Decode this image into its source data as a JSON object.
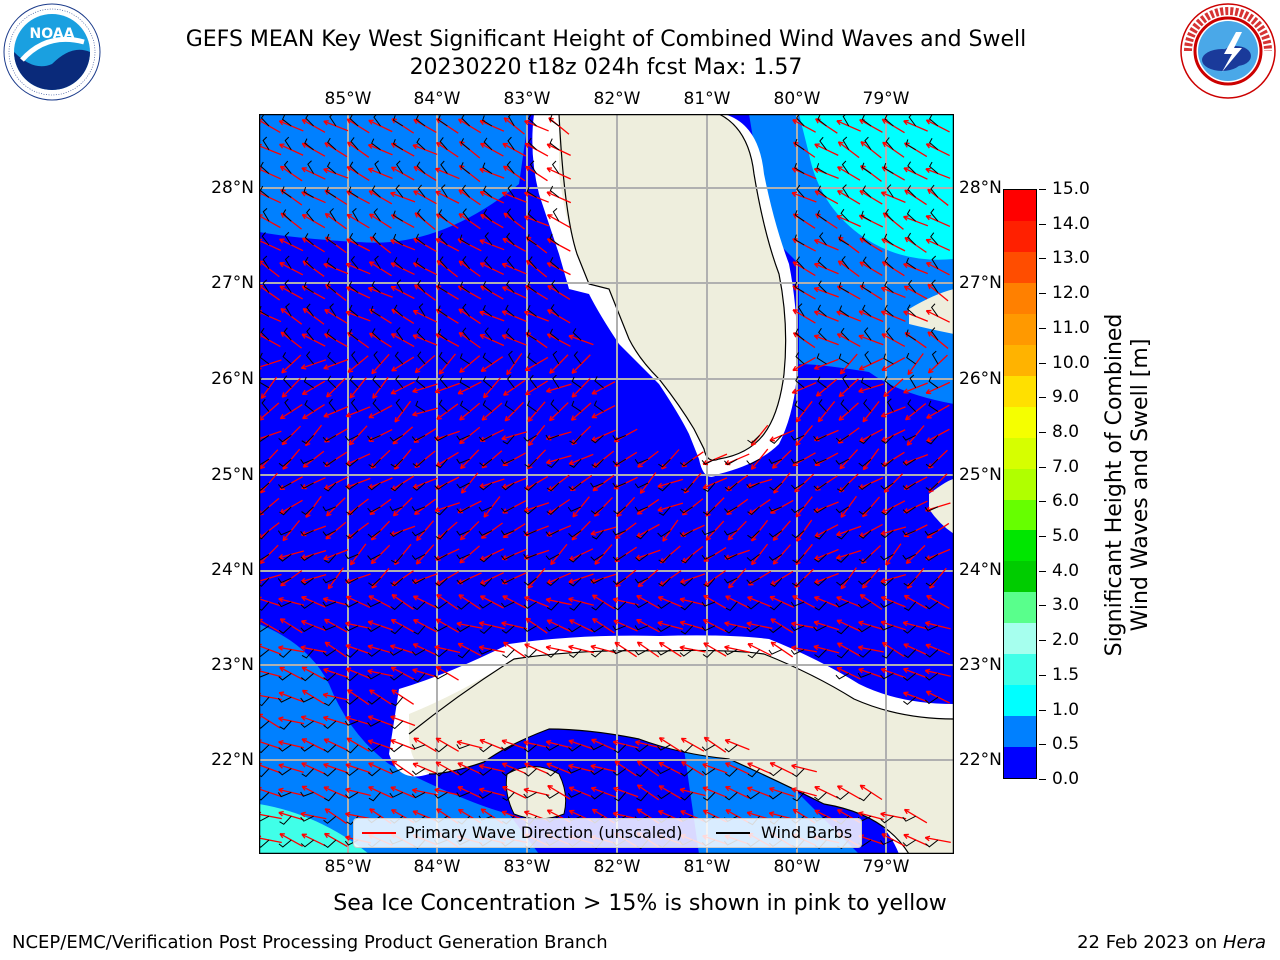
{
  "title": {
    "line1": "GEFS MEAN Key West Significant Height of Combined Wind Waves and Swell",
    "line2": "20230220 t18z 024h fcst   Max: 1.57"
  },
  "logos": {
    "left": {
      "name": "noaa-logo",
      "text": "NOAA",
      "ring_text": "NATIONAL OCEANIC AND ATMOSPHERIC ADMINISTRATION · U.S. DEPARTMENT OF COMMERCE"
    },
    "right": {
      "name": "nws-logo",
      "ring_text": "NATIONAL WEATHER SERVICE"
    }
  },
  "map": {
    "lon_labels": [
      "85°W",
      "84°W",
      "83°W",
      "82°W",
      "81°W",
      "80°W",
      "79°W"
    ],
    "lat_labels": [
      "28°N",
      "27°N",
      "26°N",
      "25°N",
      "24°N",
      "23°N",
      "22°N"
    ],
    "colors": {
      "ocean_low": "#0000ff",
      "ocean_mid": "#0080ff",
      "ocean_high": "#00ffff",
      "ocean_pale": "#40ffe8",
      "land": "#eeeedd",
      "grid": "#b0b0b0",
      "wave_arrow": "#ff0000",
      "wind_barb": "#000000"
    }
  },
  "legend": {
    "wave_label": "Primary Wave Direction (unscaled)",
    "wind_label": "Wind Barbs"
  },
  "colorbar": {
    "title_line1": "Significant Height of Combined",
    "title_line2": "Wind Waves and Swell [m]",
    "ticks": [
      "15.0",
      "14.0",
      "13.0",
      "12.0",
      "11.0",
      "10.0",
      "9.0",
      "8.0",
      "7.0",
      "6.0",
      "5.0",
      "4.0",
      "3.0",
      "2.0",
      "1.5",
      "1.0",
      "0.5",
      "0.0"
    ],
    "colors": [
      "#ff0000",
      "#ff2000",
      "#ff4d00",
      "#ff8000",
      "#ff9900",
      "#ffb300",
      "#ffe000",
      "#f5ff00",
      "#d6ff00",
      "#b0ff00",
      "#66ff00",
      "#00e600",
      "#00cc00",
      "#59ff8c",
      "#a6ffee",
      "#40ffe8",
      "#00ffff",
      "#0080ff",
      "#0000ff"
    ]
  },
  "ice_note": "Sea Ice Concentration > 15% is shown in pink to yellow",
  "footer": {
    "left": "NCEP/EMC/Verification Post Processing Product Generation Branch",
    "right_prefix": "22 Feb 2023 on ",
    "right_host": "Hera"
  }
}
